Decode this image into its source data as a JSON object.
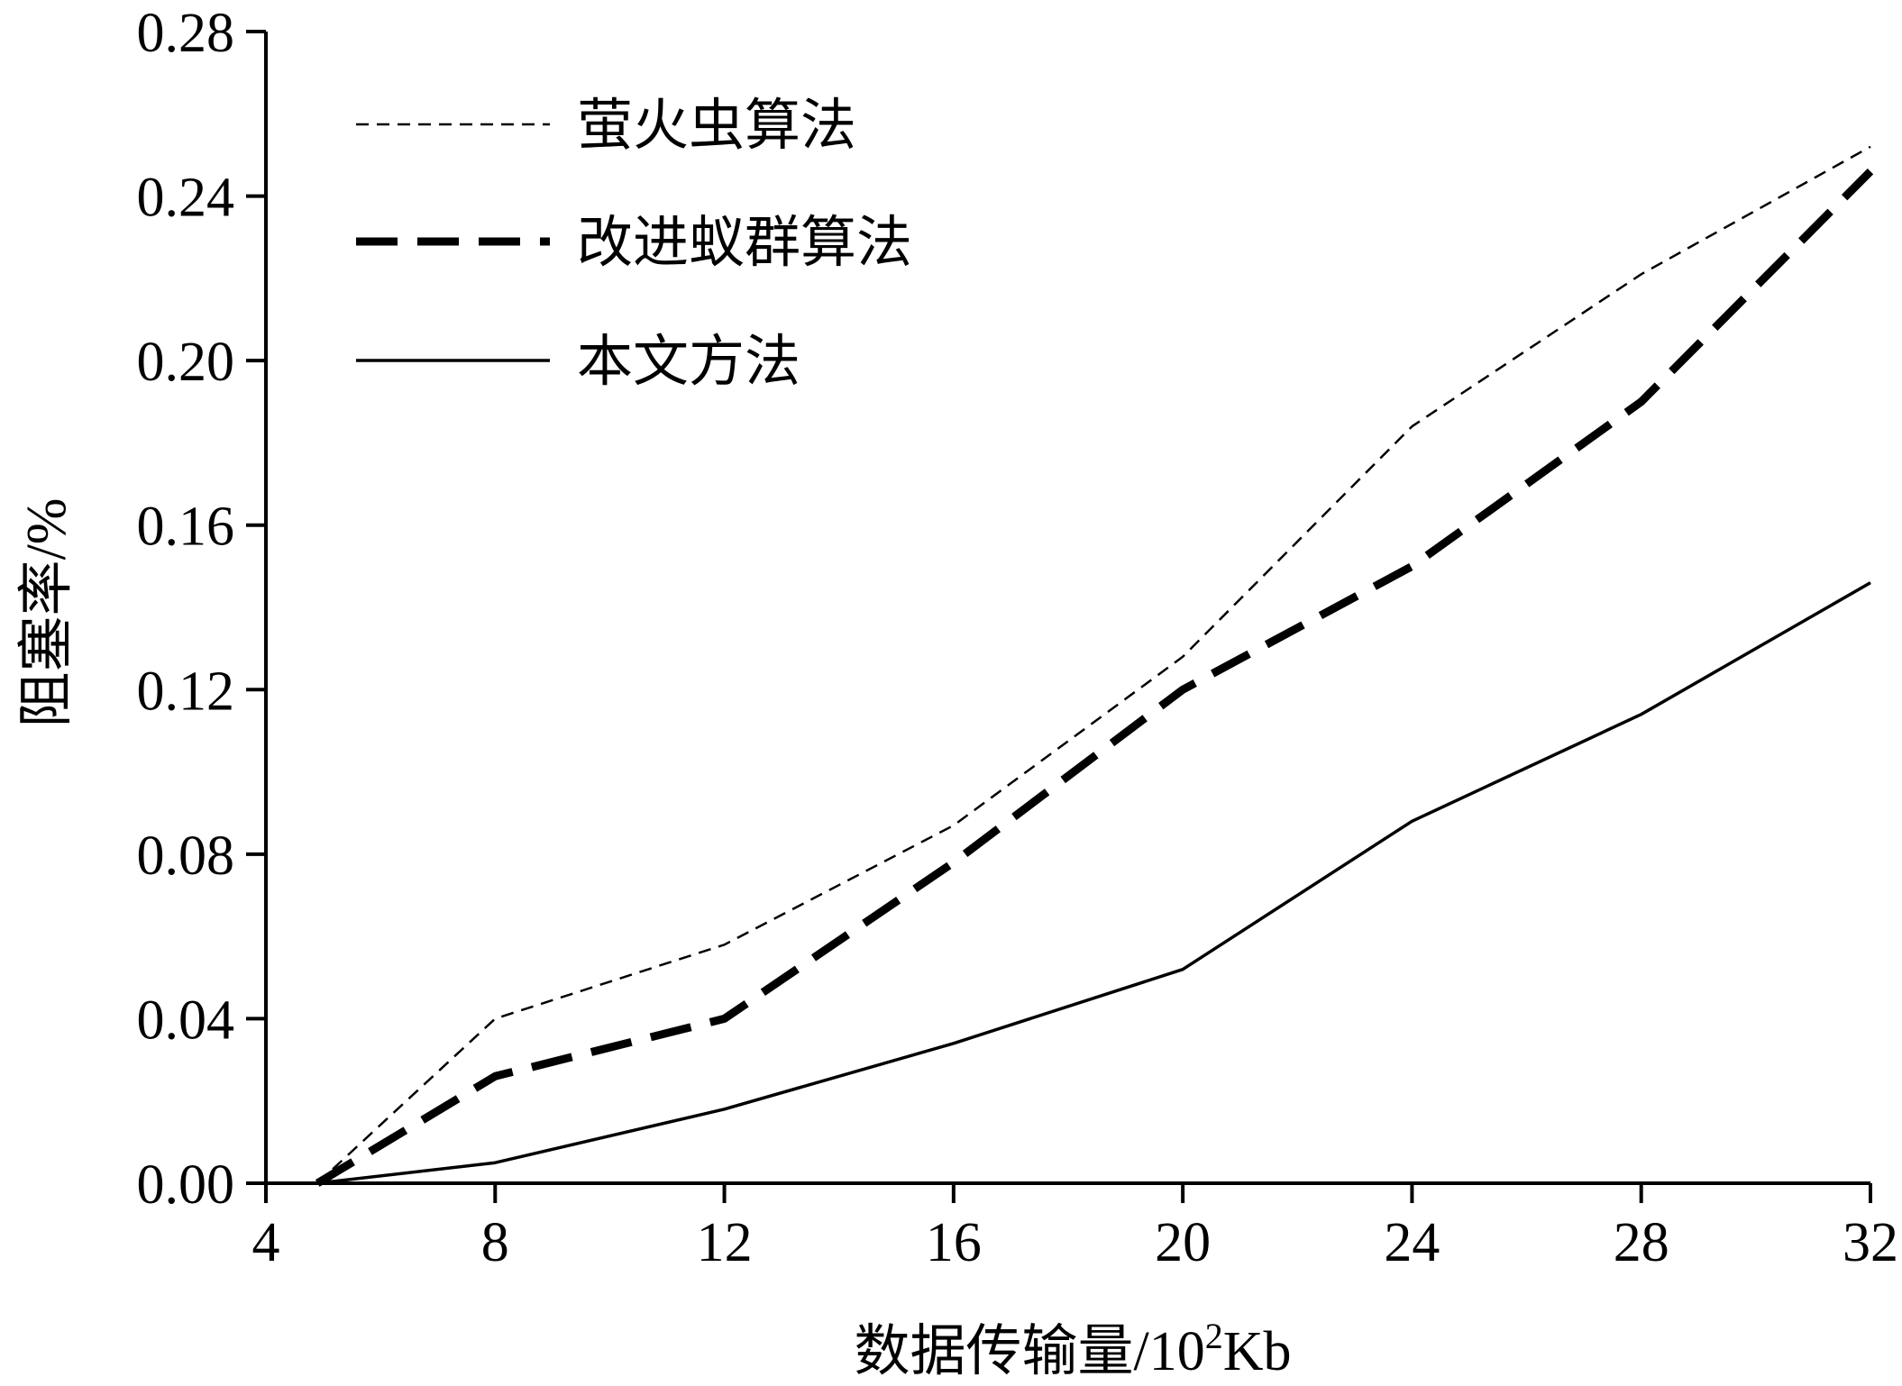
{
  "chart_data": {
    "type": "line",
    "xlabel_main": "数据传输量/10",
    "xlabel_sup": "2",
    "xlabel_tail": "Kb",
    "ylabel": "阻塞率/%",
    "xlim": [
      4,
      32
    ],
    "ylim": [
      0,
      0.28
    ],
    "xticks": [
      "4",
      "8",
      "12",
      "16",
      "20",
      "24",
      "28",
      "32"
    ],
    "yticks": [
      "0.00",
      "0.04",
      "0.08",
      "0.12",
      "0.16",
      "0.20",
      "0.24",
      "0.28"
    ],
    "legend_position": "top-left",
    "series": [
      {
        "name": "萤火虫算法",
        "style": "thin-dashed",
        "color": "#000000",
        "x": [
          4.9,
          8,
          12,
          16,
          20,
          24,
          28,
          32
        ],
        "y": [
          0.0,
          0.04,
          0.058,
          0.087,
          0.128,
          0.184,
          0.221,
          0.252
        ]
      },
      {
        "name": "改进蚁群算法",
        "style": "thick-dashed",
        "color": "#000000",
        "x": [
          4.9,
          8,
          12,
          16,
          20,
          24,
          28,
          32
        ],
        "y": [
          0.0,
          0.026,
          0.04,
          0.078,
          0.12,
          0.15,
          0.19,
          0.246
        ]
      },
      {
        "name": "本文方法",
        "style": "solid",
        "color": "#000000",
        "x": [
          4.9,
          8,
          12,
          16,
          20,
          24,
          28,
          32
        ],
        "y": [
          0.0,
          0.005,
          0.018,
          0.034,
          0.052,
          0.088,
          0.114,
          0.146
        ]
      }
    ]
  }
}
